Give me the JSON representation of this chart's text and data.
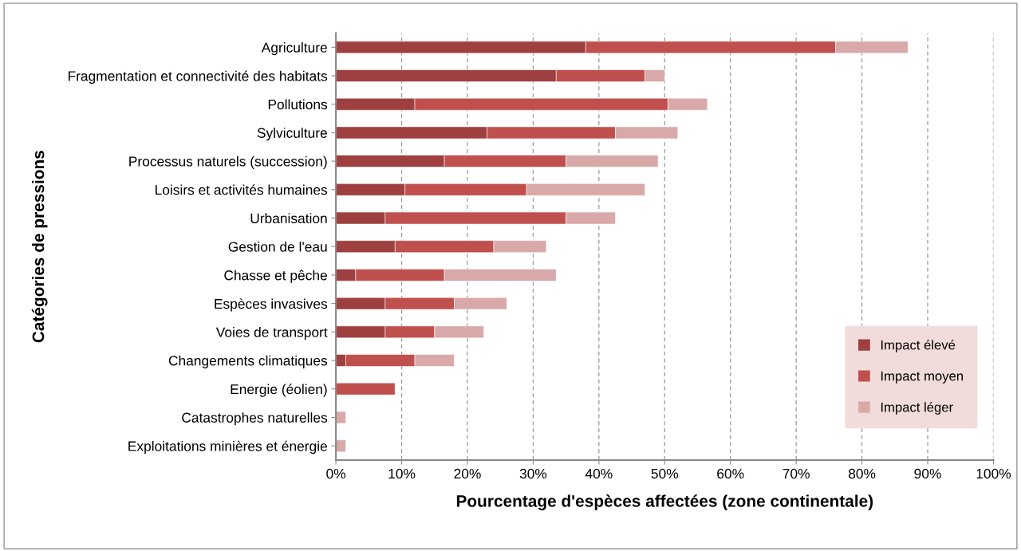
{
  "chart_data": {
    "type": "bar",
    "orientation": "horizontal",
    "stacked": true,
    "xlabel": "Pourcentage d'espèces affectées (zone continentale)",
    "ylabel": "Catégories de pressions",
    "categories": [
      "Agriculture",
      "Fragmentation et connectivité des habitats",
      "Pollutions",
      "Sylviculture",
      "Processus naturels (succession)",
      "Loisirs et activités humaines",
      "Urbanisation",
      "Gestion de l'eau",
      "Chasse et pêche",
      "Espèces invasives",
      "Voies de transport",
      "Changements climatiques",
      "Energie (éolien)",
      "Catastrophes naturelles",
      "Exploitations minières et énergie"
    ],
    "series": [
      {
        "name": "Impact élevé",
        "color": "#9e4040",
        "values": [
          38,
          33.5,
          12,
          23,
          16.5,
          10.5,
          7.5,
          9,
          3,
          7.5,
          7.5,
          1.5,
          0,
          0,
          0
        ]
      },
      {
        "name": "Impact moyen",
        "color": "#c0504d",
        "values": [
          38,
          13.5,
          38.5,
          19.5,
          18.5,
          18.5,
          27.5,
          15,
          13.5,
          10.5,
          7.5,
          10.5,
          9,
          0,
          0
        ]
      },
      {
        "name": "Impact léger",
        "color": "#d9a9a9",
        "values": [
          11,
          3,
          6,
          9.5,
          14,
          18,
          7.5,
          8,
          17,
          8,
          7.5,
          6,
          0,
          1.5,
          1.5
        ]
      }
    ],
    "xlim": [
      0,
      100
    ],
    "xticks": [
      {
        "value": 0,
        "label": "0%"
      },
      {
        "value": 10,
        "label": "10%"
      },
      {
        "value": 20,
        "label": "20%"
      },
      {
        "value": 30,
        "label": "30%"
      },
      {
        "value": 40,
        "label": "40%"
      },
      {
        "value": 50,
        "label": "50%"
      },
      {
        "value": 60,
        "label": "60%"
      },
      {
        "value": 70,
        "label": "70%"
      },
      {
        "value": 80,
        "label": "80%"
      },
      {
        "value": 90,
        "label": "90%"
      },
      {
        "value": 100,
        "label": "100%"
      }
    ],
    "grid": "x",
    "legend": "bottom right"
  }
}
